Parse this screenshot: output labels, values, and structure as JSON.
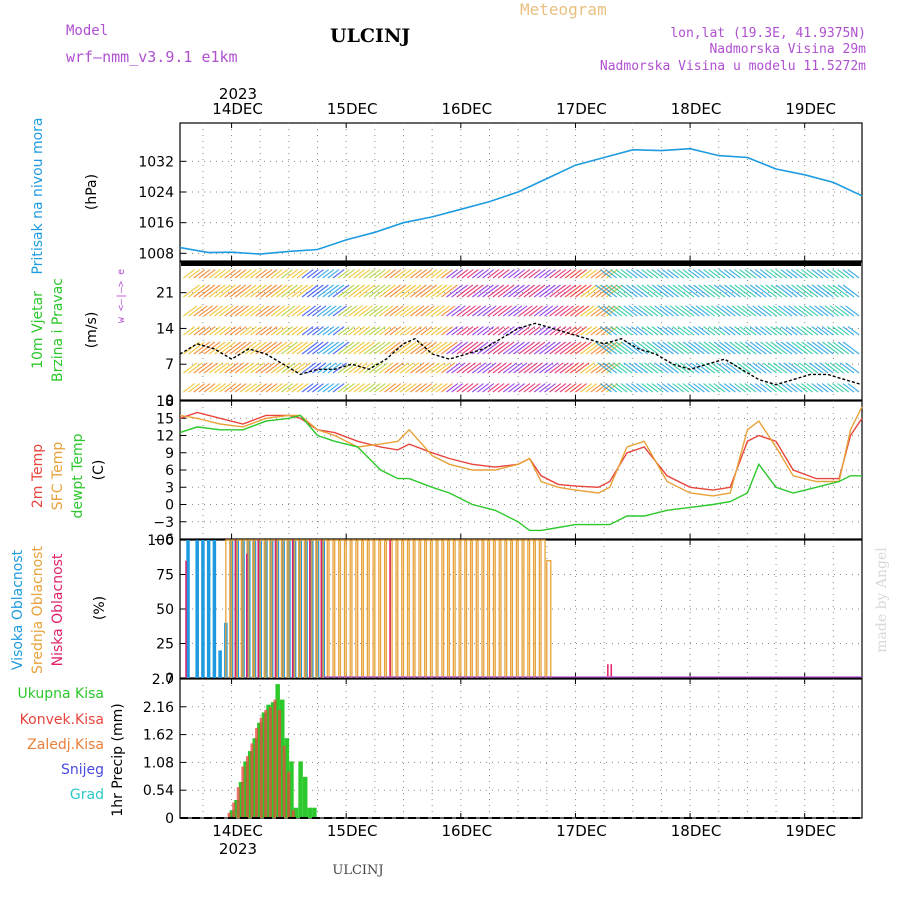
{
  "header": {
    "model_label": "Model",
    "model_name": "wrf—nmm_v3.9.1  e1km",
    "station": "ULCINJ",
    "product": "Meteogram",
    "lonlat": "lon,lat (19.3E, 41.9375N)",
    "elevation": "Nadmorska Visina 29m",
    "model_elevation": "Nadmorska Visina u modelu 11.5272m",
    "credit": "made by Angel",
    "footer_station": "ULCINJ"
  },
  "colors": {
    "pressure": "#1e9be0",
    "wind_speed": "#000000",
    "temp2m": "#e8453c",
    "sfc_temp": "#e8a23a",
    "dewpoint": "#2cc82c",
    "high_cloud": "#1e9be0",
    "mid_cloud": "#e8a23a",
    "low_cloud": "#e0206a",
    "total_precip": "#2cc82c",
    "conv_precip": "#e8453c",
    "header_purple": "#b050d0",
    "header_gold": "#e8c080"
  },
  "time_axis": {
    "year": "2023",
    "days": [
      "14DEC",
      "15DEC",
      "16DEC",
      "17DEC",
      "18DEC",
      "19DEC"
    ],
    "x_range_days": [
      13.55,
      19.5
    ]
  },
  "chart_data": [
    {
      "type": "line",
      "id": "pressure",
      "ylabel": "Pritisak na nivou mora",
      "unit": "(hPa)",
      "yticks": [
        "1008",
        "1016",
        "1024",
        "1032"
      ],
      "ylim": [
        1006,
        1042
      ],
      "grid": true,
      "x": [
        13.55,
        13.8,
        14.0,
        14.25,
        14.5,
        14.75,
        15.0,
        15.25,
        15.5,
        15.75,
        16.0,
        16.25,
        16.5,
        16.75,
        17.0,
        17.25,
        17.5,
        17.75,
        18.0,
        18.25,
        18.5,
        18.75,
        19.0,
        19.25,
        19.5
      ],
      "series": [
        {
          "values": [
            1009.5,
            1008.2,
            1008.3,
            1007.8,
            1008.5,
            1009.0,
            1011.5,
            1013.5,
            1016.0,
            1017.5,
            1019.5,
            1021.5,
            1024.0,
            1027.5,
            1031.0,
            1033.0,
            1035.0,
            1034.8,
            1035.3,
            1033.5,
            1033.0,
            1030.0,
            1028.5,
            1026.5,
            1023.0
          ]
        }
      ]
    },
    {
      "type": "line",
      "id": "wind",
      "ylabel": "10m Vjetar Brzina i Pravac",
      "unit": "(m/s)",
      "compass": "w <—|—> e",
      "yticks": [
        "0",
        "7",
        "14",
        "21"
      ],
      "ylim": [
        0,
        27
      ],
      "grid": true,
      "x": [
        13.55,
        13.7,
        13.85,
        14.0,
        14.15,
        14.3,
        14.45,
        14.6,
        14.75,
        14.9,
        15.05,
        15.2,
        15.35,
        15.5,
        15.6,
        15.75,
        15.9,
        16.05,
        16.2,
        16.35,
        16.5,
        16.65,
        16.8,
        16.95,
        17.1,
        17.25,
        17.4,
        17.55,
        17.7,
        17.85,
        18.0,
        18.15,
        18.3,
        18.45,
        18.6,
        18.75,
        18.9,
        19.05,
        19.2,
        19.35,
        19.5
      ],
      "series": [
        {
          "name": "speed",
          "values": [
            9,
            11,
            10,
            8,
            10,
            9,
            7,
            5,
            6,
            6,
            7,
            6,
            8,
            11,
            12,
            9,
            8,
            9,
            10,
            12,
            14,
            15,
            14,
            13,
            12,
            11,
            12,
            10,
            9,
            7,
            6,
            7,
            8,
            6,
            4,
            3,
            4,
            5,
            5,
            4,
            3
          ]
        }
      ]
    },
    {
      "type": "line",
      "id": "temperature",
      "ylabel": "2m Temp / SFC Temp / dewpt Temp",
      "unit": "(C)",
      "yticks": [
        "−6",
        "−3",
        "0",
        "3",
        "6",
        "9",
        "12",
        "15",
        "18"
      ],
      "ylim": [
        -6,
        18
      ],
      "grid": true,
      "x": [
        13.55,
        13.7,
        13.9,
        14.1,
        14.3,
        14.5,
        14.6,
        14.75,
        14.9,
        15.1,
        15.3,
        15.45,
        15.55,
        15.75,
        15.9,
        16.1,
        16.3,
        16.5,
        16.6,
        16.7,
        16.85,
        17.0,
        17.2,
        17.3,
        17.45,
        17.6,
        17.8,
        18.0,
        18.2,
        18.35,
        18.5,
        18.6,
        18.75,
        18.9,
        19.1,
        19.3,
        19.4,
        19.5
      ],
      "series": [
        {
          "name": "2m Temp",
          "values": [
            15,
            16,
            15,
            14,
            15.5,
            15.5,
            15,
            13,
            12.5,
            11,
            10,
            9.5,
            10.5,
            9,
            8,
            7,
            6.5,
            7,
            8,
            5,
            3.5,
            3.2,
            3,
            4,
            9,
            10,
            5,
            3,
            2.5,
            3,
            11,
            12,
            11,
            6,
            4.5,
            4.5,
            12,
            15
          ]
        },
        {
          "name": "SFC Temp",
          "values": [
            15.5,
            15,
            14,
            13.5,
            15,
            15.5,
            15.5,
            13,
            12,
            10,
            10.5,
            11,
            13,
            8.5,
            7,
            6,
            6,
            7,
            8,
            4,
            3,
            2.5,
            2,
            3,
            10,
            11,
            4,
            2,
            1.5,
            2,
            13,
            14.5,
            10,
            5,
            4,
            4,
            13,
            17
          ]
        },
        {
          "name": "dewpt Temp",
          "values": [
            12.5,
            13.5,
            13,
            13,
            14.5,
            15,
            15.5,
            12,
            11,
            10,
            6,
            4.5,
            4.5,
            3,
            2,
            0,
            -1,
            -3,
            -4.5,
            -4.5,
            -4,
            -3.5,
            -3.5,
            -3.5,
            -2,
            -2,
            -1,
            -0.5,
            0,
            0.5,
            2,
            7,
            3,
            2,
            3,
            4,
            5,
            5
          ]
        }
      ]
    },
    {
      "type": "bar",
      "id": "clouds",
      "ylabel": "Visoka Oblacnost / Srednja Oblacnost / Niska Oblacnost",
      "unit": "(%)",
      "yticks": [
        "0",
        "25",
        "50",
        "75",
        "100"
      ],
      "ylim": [
        0,
        100
      ],
      "grid": true,
      "series": [
        {
          "name": "Visoka Oblacnost",
          "x": [
            13.62,
            13.7,
            13.75,
            13.8,
            13.85,
            13.9,
            13.95,
            14.0,
            14.05,
            14.1,
            14.15,
            14.2,
            14.25,
            14.3,
            14.35,
            14.4,
            14.45,
            14.5,
            14.55,
            14.6,
            14.65,
            14.7,
            14.75,
            14.8
          ],
          "values": [
            100,
            100,
            100,
            100,
            100,
            20,
            40,
            100,
            100,
            100,
            100,
            100,
            100,
            100,
            100,
            100,
            100,
            100,
            100,
            100,
            100,
            100,
            100,
            100
          ]
        },
        {
          "name": "Srednja Oblacnost",
          "x": [
            13.95,
            14.0,
            14.05,
            14.1,
            14.15,
            14.2,
            14.25,
            14.3,
            14.35,
            14.4,
            14.45,
            14.5,
            14.55,
            14.6,
            14.65,
            14.7,
            14.75,
            14.8,
            14.85,
            14.9,
            14.95,
            15.0,
            15.05,
            15.1,
            15.15,
            15.2,
            15.25,
            15.3,
            15.35,
            15.4,
            15.45,
            15.5,
            15.55,
            15.6,
            15.65,
            15.7,
            15.75,
            15.8,
            15.85,
            15.9,
            15.95,
            16.0,
            16.05,
            16.1,
            16.15,
            16.2,
            16.25,
            16.3,
            16.35,
            16.4,
            16.45,
            16.5,
            16.55,
            16.6,
            16.65,
            16.7,
            16.75
          ],
          "values": [
            100,
            100,
            100,
            100,
            100,
            100,
            100,
            100,
            100,
            100,
            100,
            100,
            100,
            100,
            100,
            100,
            100,
            100,
            100,
            100,
            100,
            100,
            100,
            100,
            100,
            100,
            100,
            100,
            100,
            100,
            100,
            100,
            100,
            100,
            100,
            100,
            100,
            100,
            100,
            100,
            100,
            100,
            100,
            100,
            100,
            100,
            100,
            100,
            100,
            100,
            100,
            100,
            100,
            100,
            100,
            100,
            85
          ]
        },
        {
          "name": "Niska Oblacnost",
          "x": [
            13.62,
            14.05,
            14.15,
            14.25,
            14.4,
            14.55,
            14.7,
            14.8,
            15.4,
            17.3,
            17.33
          ],
          "values": [
            85,
            100,
            90,
            100,
            100,
            100,
            100,
            100,
            100,
            10,
            10
          ]
        }
      ]
    },
    {
      "type": "bar",
      "id": "precip",
      "ylabel": "1hr Precip",
      "unit": "(mm)",
      "legend": [
        "Ukupna Kisa",
        "Konvek.Kisa",
        "Zaledj.Kisa",
        "Snijeg",
        "Grad"
      ],
      "yticks": [
        "0",
        "0.54",
        "1.08",
        "1.62",
        "2.16",
        "2.7"
      ],
      "ylim": [
        0,
        2.7
      ],
      "grid": true,
      "x": [
        14.0,
        14.04,
        14.08,
        14.12,
        14.16,
        14.2,
        14.24,
        14.28,
        14.32,
        14.36,
        14.4,
        14.44,
        14.48,
        14.52,
        14.56,
        14.6,
        14.64,
        14.68,
        14.72
      ],
      "series": [
        {
          "name": "Ukupna Kisa",
          "values": [
            0.15,
            0.35,
            0.7,
            1.1,
            1.3,
            1.55,
            1.85,
            2.05,
            2.2,
            2.25,
            2.6,
            2.3,
            1.55,
            1.1,
            0.2,
            1.1,
            0.8,
            0.2,
            0.2
          ]
        },
        {
          "name": "Konvek.Kisa",
          "values": [
            0.1,
            0.3,
            0.6,
            1.0,
            1.2,
            1.45,
            1.75,
            1.95,
            2.1,
            2.15,
            2.3,
            2.1,
            1.4,
            0.9,
            0.15,
            0.0,
            0.0,
            0.0,
            0.0
          ]
        }
      ]
    }
  ]
}
